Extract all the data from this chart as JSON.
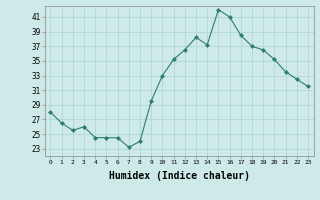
{
  "x": [
    0,
    1,
    2,
    3,
    4,
    5,
    6,
    7,
    8,
    9,
    10,
    11,
    12,
    13,
    14,
    15,
    16,
    17,
    18,
    19,
    20,
    21,
    22,
    23
  ],
  "y": [
    28,
    26.5,
    25.5,
    26,
    24.5,
    24.5,
    24.5,
    23.2,
    24,
    29.5,
    33,
    35.2,
    36.5,
    38.2,
    37.2,
    42,
    41,
    38.5,
    37,
    36.5,
    35.2,
    33.5,
    32.5,
    31.5
  ],
  "line_color": "#2e7d6e",
  "marker": "D",
  "marker_size": 2,
  "bg_color": "#ceeae8",
  "grid_color": "#b0d8d5",
  "xlabel": "Humidex (Indice chaleur)",
  "xlabel_fontsize": 7,
  "ylabel_ticks": [
    23,
    25,
    27,
    29,
    31,
    33,
    35,
    37,
    39,
    41
  ],
  "xtick_labels": [
    "0",
    "1",
    "2",
    "3",
    "4",
    "5",
    "6",
    "7",
    "8",
    "9",
    "10",
    "11",
    "12",
    "13",
    "14",
    "15",
    "16",
    "17",
    "18",
    "19",
    "20",
    "21",
    "22",
    "23"
  ],
  "ylim": [
    22.0,
    42.5
  ],
  "xlim": [
    -0.5,
    23.5
  ]
}
